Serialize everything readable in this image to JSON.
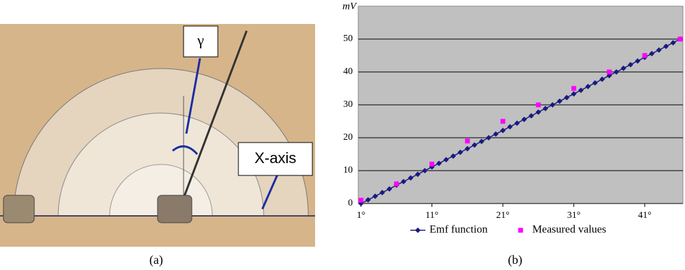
{
  "figure": {
    "gamma_label": "γ",
    "x_axis_label": "X-axis",
    "captions": [
      "(a)",
      "(b)"
    ]
  },
  "chart_data": {
    "type": "line",
    "y_axis_label": "mV",
    "x": [
      1,
      2,
      3,
      4,
      5,
      6,
      7,
      8,
      9,
      10,
      11,
      12,
      13,
      14,
      15,
      16,
      17,
      18,
      19,
      20,
      21,
      22,
      23,
      24,
      25,
      26,
      27,
      28,
      29,
      30,
      31,
      32,
      33,
      34,
      35,
      36,
      37,
      38,
      39,
      40,
      41,
      42,
      43,
      44,
      45,
      46
    ],
    "series": [
      {
        "name": "Emf function",
        "color": "#1a1a80",
        "marker": "diamond",
        "values": [
          0,
          1.11,
          2.22,
          3.33,
          4.44,
          5.56,
          6.67,
          7.78,
          8.89,
          10,
          11.11,
          12.22,
          13.33,
          14.44,
          15.56,
          16.67,
          17.78,
          18.89,
          20,
          21.11,
          22.22,
          23.33,
          24.44,
          25.56,
          26.67,
          27.78,
          28.89,
          30,
          31.11,
          32.22,
          33.33,
          34.44,
          35.56,
          36.67,
          37.78,
          38.89,
          40,
          41.11,
          42.22,
          43.33,
          44.44,
          45.56,
          46.67,
          47.78,
          48.89,
          50
        ]
      },
      {
        "name": "Measured values",
        "color": "#ff00ff",
        "marker": "square",
        "x": [
          1,
          6,
          11,
          16,
          21,
          26,
          31,
          36,
          41,
          46
        ],
        "values": [
          1,
          6,
          12,
          19,
          25,
          30,
          35,
          40,
          45,
          50
        ]
      }
    ],
    "xlim": [
      1,
      46
    ],
    "ylim": [
      0,
      60
    ],
    "xticks": [
      {
        "value": 1,
        "label": "1°"
      },
      {
        "value": 11,
        "label": "11°"
      },
      {
        "value": 21,
        "label": "21°"
      },
      {
        "value": 31,
        "label": "31°"
      },
      {
        "value": 41,
        "label": "41°"
      }
    ],
    "yticks": [
      0,
      10,
      20,
      30,
      40,
      50
    ],
    "grid": true,
    "background": "#c0c0c0"
  }
}
